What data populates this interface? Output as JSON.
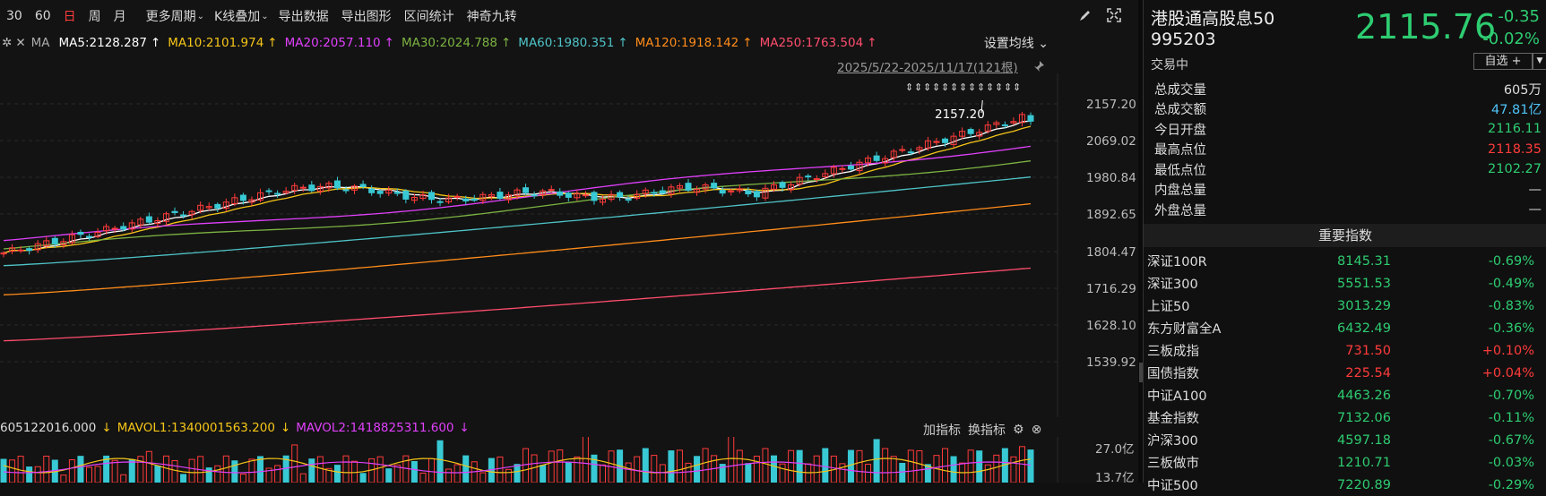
{
  "toolbar": {
    "periods": [
      "30",
      "60",
      "日",
      "周",
      "月"
    ],
    "active_index": 2,
    "menus": [
      "更多周期",
      "K线叠加",
      "导出数据",
      "导出图形",
      "区间统计",
      "神奇九转"
    ]
  },
  "ma_legend": {
    "label": "MA",
    "items": [
      {
        "text": "MA5:2128.287",
        "color": "#ffffff",
        "arrow": "↑"
      },
      {
        "text": "MA10:2101.974",
        "color": "#f5c518",
        "arrow": "↑"
      },
      {
        "text": "MA20:2057.110",
        "color": "#e040fb",
        "arrow": "↑"
      },
      {
        "text": "MA30:2024.788",
        "color": "#7cb342",
        "arrow": "↑"
      },
      {
        "text": "MA60:1980.351",
        "color": "#4fc3c7",
        "arrow": "↑"
      },
      {
        "text": "MA120:1918.142",
        "color": "#ff8c1a",
        "arrow": "↑"
      },
      {
        "text": "MA250:1763.504",
        "color": "#ff4d6d",
        "arrow": "↑"
      }
    ],
    "set_label": "设置均线"
  },
  "range_text": "2025/5/22-2025/11/17(121根)",
  "high_label": "2157.20",
  "price_axis": [
    "2157.20",
    "2069.02",
    "1980.84",
    "1892.65",
    "1804.47",
    "1716.29",
    "1628.10",
    "1539.92"
  ],
  "volume": {
    "head_value": "605122016.000",
    "mavol1": "MAVOL1:1340001563.200",
    "mavol2": "MAVOL2:1418825311.600",
    "mavol1_color": "#f5c518",
    "mavol2_color": "#e040fb",
    "add_indicator": "加指标",
    "switch_indicator": "换指标",
    "axis": [
      "27.0亿",
      "13.7亿"
    ]
  },
  "quote": {
    "name": "港股通高股息50",
    "code": "995203",
    "price": "2115.76",
    "change": "-0.35",
    "change_pct": "-0.02%",
    "status": "交易中",
    "watch_label": "自选 +",
    "stats": [
      {
        "k": "总成交量",
        "v": "605万",
        "color": "#dddddd"
      },
      {
        "k": "总成交额",
        "v": "47.81亿",
        "color": "#4fc3f7"
      },
      {
        "k": "今日开盘",
        "v": "2116.11",
        "color": "#2ecc71"
      },
      {
        "k": "最高点位",
        "v": "2118.35",
        "color": "#ff3b3b"
      },
      {
        "k": "最低点位",
        "v": "2102.27",
        "color": "#2ecc71"
      },
      {
        "k": "内盘总量",
        "v": "—",
        "color": "#dddddd"
      },
      {
        "k": "外盘总量",
        "v": "—",
        "color": "#dddddd"
      }
    ]
  },
  "indices": {
    "title": "重要指数",
    "items": [
      {
        "name": "深证100R",
        "value": "8145.31",
        "pct": "-0.69%",
        "up": false
      },
      {
        "name": "深证300",
        "value": "5551.53",
        "pct": "-0.49%",
        "up": false
      },
      {
        "name": "上证50",
        "value": "3013.29",
        "pct": "-0.83%",
        "up": false
      },
      {
        "name": "东方财富全A",
        "value": "6432.49",
        "pct": "-0.36%",
        "up": false
      },
      {
        "name": "三板成指",
        "value": "731.50",
        "pct": "+0.10%",
        "up": true
      },
      {
        "name": "国债指数",
        "value": "225.54",
        "pct": "+0.04%",
        "up": true
      },
      {
        "name": "中证A100",
        "value": "4463.26",
        "pct": "-0.70%",
        "up": false
      },
      {
        "name": "基金指数",
        "value": "7132.06",
        "pct": "-0.11%",
        "up": false
      },
      {
        "name": "沪深300",
        "value": "4597.18",
        "pct": "-0.67%",
        "up": false
      },
      {
        "name": "三板做市",
        "value": "1210.71",
        "pct": "-0.03%",
        "up": false
      },
      {
        "name": "中证500",
        "value": "7220.89",
        "pct": "-0.29%",
        "up": false
      }
    ]
  }
}
